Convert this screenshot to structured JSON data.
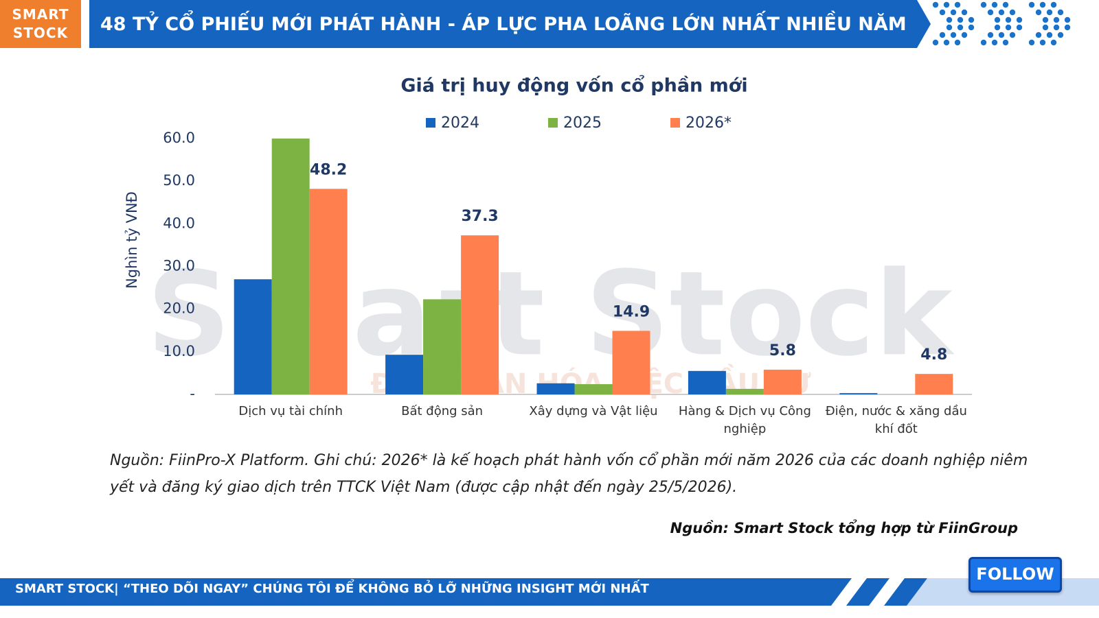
{
  "header": {
    "logo": "SMART STOCK",
    "title": "48 TỶ CỔ PHIẾU MỚI PHÁT HÀNH - ÁP LỰC PHA LOÃNG LỚN NHẤT NHIỀU NĂM"
  },
  "chart_data": {
    "type": "bar",
    "title": "Giá trị huy động vốn cổ phần mới",
    "y_label": "Nghìn tỷ VNĐ",
    "categories": [
      "Dịch vụ tài chính",
      "Bất động sản",
      "Xây dựng và Vật liệu",
      "Hàng & Dịch vụ Công nghiệp",
      "Điện, nước & xăng dầu khí đốt"
    ],
    "series": [
      {
        "name": "2024",
        "color": "#1565c0",
        "values": [
          27.0,
          9.3,
          2.6,
          5.5,
          0.3
        ]
      },
      {
        "name": "2025",
        "color": "#7cb342",
        "values": [
          60.0,
          22.3,
          2.4,
          1.3,
          0
        ]
      },
      {
        "name": "2026*",
        "color": "#ff7f4f",
        "values": [
          48.2,
          37.3,
          14.9,
          5.8,
          4.8
        ],
        "show_labels": true
      }
    ],
    "ylim": [
      0,
      60
    ],
    "yticks": [
      {
        "value": 0,
        "label": "-"
      },
      {
        "value": 10,
        "label": "10.0"
      },
      {
        "value": 20,
        "label": "20.0"
      },
      {
        "value": 30,
        "label": "30.0"
      },
      {
        "value": 40,
        "label": "40.0"
      },
      {
        "value": 50,
        "label": "50.0"
      },
      {
        "value": 60,
        "label": "60.0"
      }
    ],
    "grid": false,
    "legend": "top"
  },
  "watermark": {
    "brand": "Smart Stock",
    "slogan": "ĐƠN GIẢN HÓA VIỆC ĐẦU TƯ"
  },
  "note": "Nguồn: FiinPro-X Platform. Ghi chú: 2026* là kế hoạch phát hành vốn cổ phần mới năm 2026 của các doanh nghiệp niêm yết và đăng ký giao dịch trên TTCK Việt Nam (được cập nhật đến ngày 25/5/2026).",
  "source": "Nguồn: Smart Stock tổng hợp từ FiinGroup",
  "footer": {
    "text": "SMART STOCK| “THEO DÕI NGAY” CHÚNG TÔI ĐỂ KHÔNG BỎ LỠ NHỮNG INSIGHT MỚI NHẤT",
    "button": "FOLLOW"
  }
}
